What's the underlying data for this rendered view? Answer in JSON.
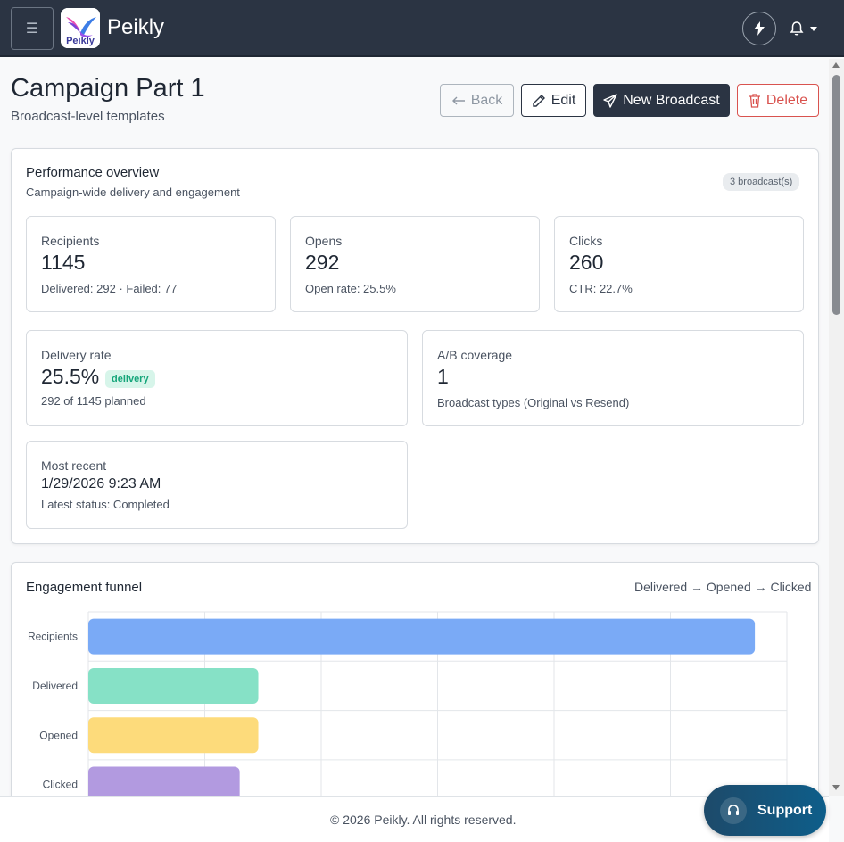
{
  "app": {
    "name": "Peikly",
    "logo_text": "Peikly",
    "menu_icon": "hamburger-icon",
    "quick_icon": "lightning-icon",
    "notify_icon": "bell-icon"
  },
  "page": {
    "title": "Campaign Part 1",
    "subtitle": "Broadcast-level templates"
  },
  "actions": {
    "back_label": "Back",
    "edit_label": "Edit",
    "new_broadcast_label": "New Broadcast",
    "delete_label": "Delete"
  },
  "overview": {
    "title": "Performance overview",
    "subtitle": "Campaign-wide delivery and engagement",
    "badge": "3 broadcast(s)",
    "recipients": {
      "label": "Recipients",
      "value": "1145",
      "sub": "Delivered: 292 · Failed: 77"
    },
    "opens": {
      "label": "Opens",
      "value": "292",
      "sub": "Open rate: 25.5%"
    },
    "clicks": {
      "label": "Clicks",
      "value": "260",
      "sub": "CTR: 22.7%"
    },
    "delivery_rate": {
      "label": "Delivery rate",
      "value": "25.5%",
      "tag": "delivery",
      "sub": "292 of 1145 planned"
    },
    "ab_coverage": {
      "label": "A/B coverage",
      "value": "1",
      "sub": "Broadcast types (Original vs Resend)"
    },
    "most_recent": {
      "label": "Most recent",
      "value": "1/29/2026 9:23 AM",
      "sub": "Latest status: Completed"
    }
  },
  "funnel": {
    "title": "Engagement funnel",
    "legend": "Delivered → Opened → Clicked"
  },
  "chart_data": {
    "type": "bar",
    "orientation": "horizontal",
    "categories": [
      "Recipients",
      "Delivered",
      "Opened",
      "Clicked"
    ],
    "values": [
      1145,
      292,
      292,
      260
    ],
    "colors": [
      "#7aaaf6",
      "#86e1c6",
      "#fddb7b",
      "#b29ae0"
    ],
    "xlim": [
      0,
      1200
    ],
    "grid": true
  },
  "footer": {
    "text": "© 2026 Peikly. All rights reserved."
  },
  "support": {
    "label": "Support"
  },
  "colors": {
    "navbar": "#2b3443",
    "primary": "#2b3443",
    "danger": "#d9534f",
    "success_tag": "#15a57a"
  }
}
